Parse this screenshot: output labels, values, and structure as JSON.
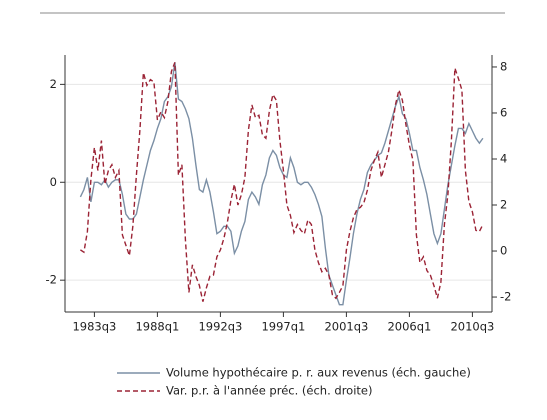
{
  "chart_data": {
    "type": "line",
    "x": [
      1982.5,
      1982.75,
      1983,
      1983.25,
      1983.5,
      1983.75,
      1984,
      1984.25,
      1984.5,
      1984.75,
      1985,
      1985.25,
      1985.5,
      1985.75,
      1986,
      1986.25,
      1986.5,
      1986.75,
      1987,
      1987.25,
      1987.5,
      1987.75,
      1988,
      1988.25,
      1988.5,
      1988.75,
      1989,
      1989.25,
      1989.5,
      1989.75,
      1990,
      1990.25,
      1990.5,
      1990.75,
      1991,
      1991.25,
      1991.5,
      1991.75,
      1992,
      1992.25,
      1992.5,
      1992.75,
      1993,
      1993.25,
      1993.5,
      1993.75,
      1994,
      1994.25,
      1994.5,
      1994.75,
      1995,
      1995.25,
      1995.5,
      1995.75,
      1996,
      1996.25,
      1996.5,
      1996.75,
      1997,
      1997.25,
      1997.5,
      1997.75,
      1998,
      1998.25,
      1998.5,
      1998.75,
      1999,
      1999.25,
      1999.5,
      1999.75,
      2000,
      2000.25,
      2000.5,
      2000.75,
      2001,
      2001.25,
      2001.5,
      2001.75,
      2002,
      2002.25,
      2002.5,
      2002.75,
      2003,
      2003.25,
      2003.5,
      2003.75,
      2004,
      2004.25,
      2004.5,
      2004.75,
      2005,
      2005.25,
      2005.5,
      2005.75,
      2006,
      2006.25,
      2006.5,
      2006.75,
      2007,
      2007.25,
      2007.5,
      2007.75,
      2008,
      2008.25,
      2008.5,
      2008.75,
      2009,
      2009.25,
      2009.5,
      2009.75,
      2010,
      2010.25,
      2010.5,
      2010.75,
      2011,
      2011.25
    ],
    "series": [
      {
        "name": "Volume hypothécaire p. r. aux revenus (éch. gauche)",
        "color": "#7b8fa5",
        "dash": "solid",
        "values": [
          -0.3,
          -0.15,
          0.1,
          -0.4,
          0.0,
          0.0,
          -0.05,
          0.05,
          -0.1,
          0.0,
          0.05,
          0.05,
          -0.25,
          -0.65,
          -0.75,
          -0.75,
          -0.65,
          -0.3,
          0.05,
          0.35,
          0.65,
          0.85,
          1.1,
          1.3,
          1.65,
          1.75,
          1.95,
          2.45,
          1.7,
          1.65,
          1.5,
          1.3,
          0.9,
          0.35,
          -0.15,
          -0.2,
          0.05,
          -0.2,
          -0.6,
          -1.05,
          -1.0,
          -0.9,
          -0.9,
          -1.0,
          -1.45,
          -1.3,
          -1.0,
          -0.8,
          -0.35,
          -0.2,
          -0.3,
          -0.45,
          -0.05,
          0.15,
          0.5,
          0.65,
          0.55,
          0.3,
          0.15,
          0.1,
          0.5,
          0.3,
          0.0,
          -0.05,
          0.0,
          0.0,
          -0.1,
          -0.25,
          -0.45,
          -0.7,
          -1.35,
          -1.9,
          -2.1,
          -2.3,
          -2.5,
          -2.5,
          -2.0,
          -1.55,
          -1.05,
          -0.65,
          -0.35,
          -0.15,
          0.2,
          0.35,
          0.45,
          0.55,
          0.6,
          0.8,
          1.05,
          1.3,
          1.55,
          1.75,
          1.4,
          1.3,
          1.0,
          0.65,
          0.65,
          0.3,
          0.05,
          -0.25,
          -0.65,
          -1.05,
          -1.25,
          -1.05,
          -0.55,
          -0.05,
          0.35,
          0.75,
          1.1,
          1.1,
          1.0,
          1.2,
          1.05,
          0.9,
          0.8,
          0.9
        ]
      },
      {
        "name": "Var. p.r. à l'année préc. (éch. droite)",
        "color": "#9b2335",
        "dash": "dashed",
        "axis": "y2",
        "values": [
          0.05,
          -0.05,
          0.85,
          3.1,
          4.5,
          3.5,
          4.8,
          2.9,
          3.5,
          3.75,
          3.2,
          3.5,
          0.7,
          0.25,
          -0.2,
          1.1,
          3.3,
          5.25,
          7.75,
          7.2,
          7.45,
          7.35,
          5.7,
          6.05,
          5.8,
          6.5,
          7.8,
          8.2,
          3.3,
          3.75,
          0.5,
          -1.8,
          -0.6,
          -1.1,
          -1.5,
          -2.2,
          -1.6,
          -1.1,
          -1.05,
          -0.25,
          0.05,
          0.55,
          1.25,
          2.2,
          2.9,
          2.0,
          2.45,
          3.2,
          5.25,
          6.35,
          5.8,
          5.9,
          5.05,
          4.9,
          6.1,
          6.8,
          6.55,
          4.8,
          3.5,
          2.0,
          1.55,
          0.8,
          1.15,
          0.9,
          0.75,
          1.35,
          1.15,
          0.05,
          -0.5,
          -0.9,
          -0.75,
          -1.05,
          -1.9,
          -2.05,
          -1.8,
          -1.5,
          0.05,
          0.85,
          1.45,
          1.8,
          1.9,
          2.1,
          2.65,
          3.5,
          3.95,
          4.3,
          3.2,
          3.75,
          4.3,
          5.25,
          6.35,
          7.0,
          6.55,
          5.5,
          4.6,
          3.95,
          0.7,
          -0.5,
          -0.25,
          -0.85,
          -1.05,
          -1.5,
          -2.05,
          -1.35,
          1.15,
          2.45,
          4.8,
          7.95,
          7.5,
          7.0,
          3.5,
          2.15,
          1.7,
          0.9,
          0.85,
          1.15
        ]
      }
    ],
    "xlim": [
      1981.4,
      2011.9
    ],
    "xticks": [
      {
        "value": 1983.5,
        "label": "1983q3"
      },
      {
        "value": 1988,
        "label": "1988q1"
      },
      {
        "value": 1992.5,
        "label": "1992q3"
      },
      {
        "value": 1997,
        "label": "1997q1"
      },
      {
        "value": 2001.5,
        "label": "2001q3"
      },
      {
        "value": 2006,
        "label": "2006q1"
      },
      {
        "value": 2010.5,
        "label": "2010q3"
      }
    ],
    "ylim": [
      -2.65,
      2.6
    ],
    "yticks": [
      -2,
      0,
      2
    ],
    "y2lim": [
      -2.65,
      8.52
    ],
    "y2ticks": [
      -2,
      0,
      2,
      4,
      6,
      8
    ],
    "grid": true,
    "legend": "bottom"
  }
}
